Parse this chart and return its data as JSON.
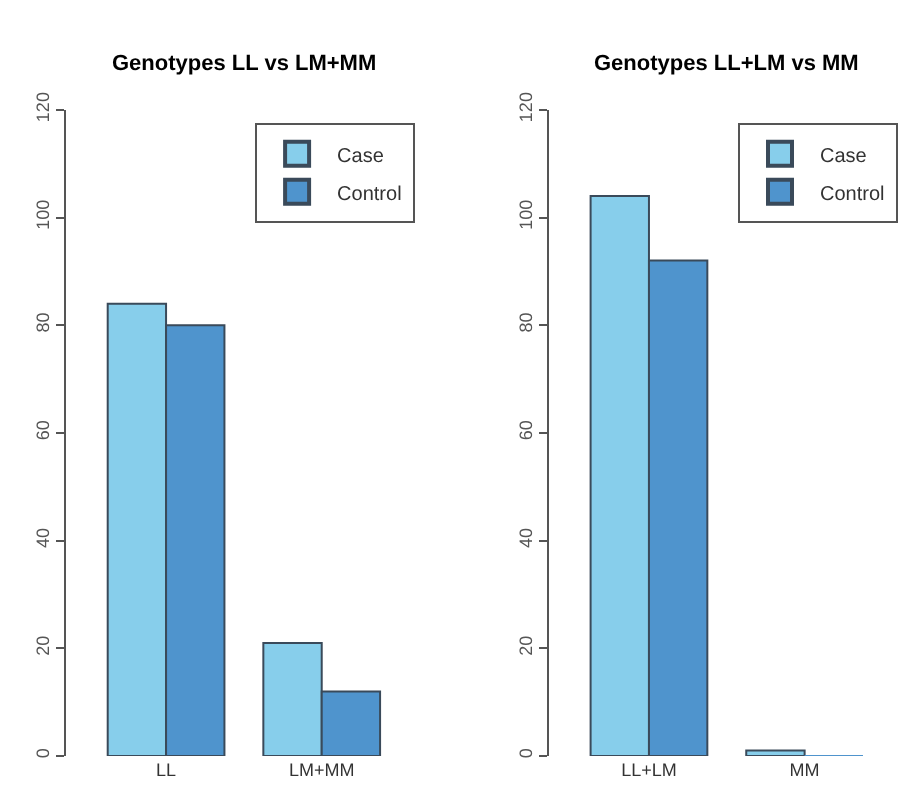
{
  "chart_data": [
    {
      "type": "bar",
      "title": "Genotypes LL vs LM+MM",
      "categories": [
        "LL",
        "LM+MM"
      ],
      "series": [
        {
          "name": "Case",
          "color": "#87ceeb",
          "values": [
            84,
            21
          ]
        },
        {
          "name": "Control",
          "color": "#4f94cd",
          "values": [
            80,
            12
          ]
        }
      ],
      "ylim": [
        0,
        120
      ],
      "yticks": [
        0,
        20,
        40,
        60,
        80,
        100,
        120
      ],
      "grid": false,
      "legend": "top right"
    },
    {
      "type": "bar",
      "title": "Genotypes LL+LM vs MM",
      "categories": [
        "LL+LM",
        "MM"
      ],
      "series": [
        {
          "name": "Case",
          "color": "#87ceeb",
          "values": [
            104,
            1
          ]
        },
        {
          "name": "Control",
          "color": "#4f94cd",
          "values": [
            92,
            0
          ]
        }
      ],
      "ylim": [
        0,
        120
      ],
      "yticks": [
        0,
        20,
        40,
        60,
        80,
        100,
        120
      ],
      "grid": false,
      "legend": "top right"
    }
  ]
}
